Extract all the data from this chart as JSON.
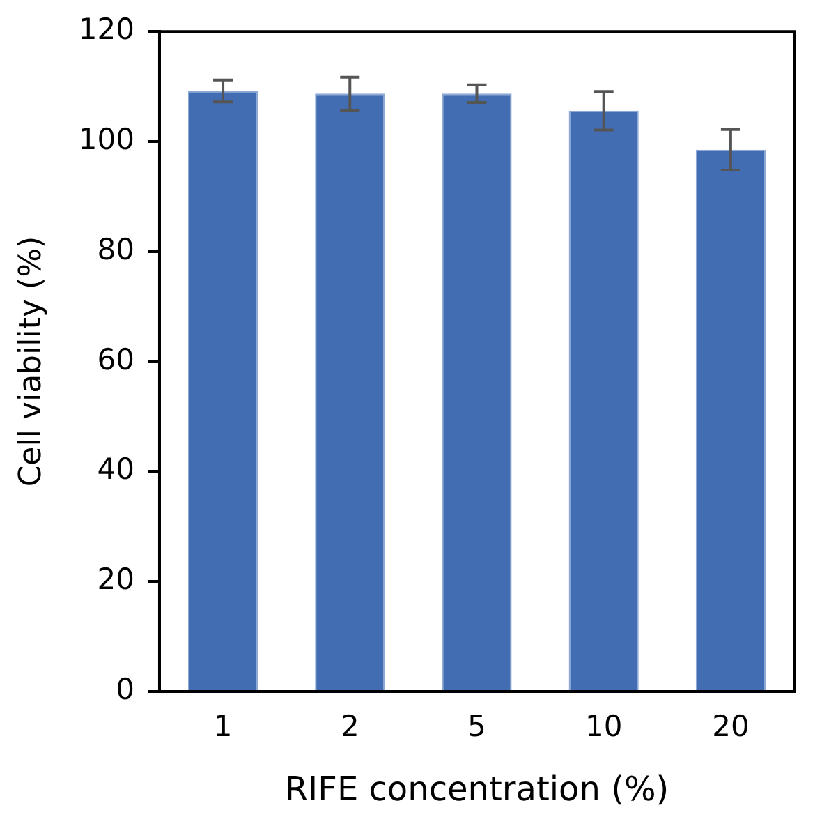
{
  "chart_data": {
    "type": "bar",
    "xlabel": "RIFE concentration (%)",
    "ylabel": "Cell viability (%)",
    "categories": [
      "1",
      "2",
      "5",
      "10",
      "20"
    ],
    "values": [
      109.2,
      108.7,
      108.7,
      105.6,
      98.5
    ],
    "errors": [
      2,
      3,
      1.6,
      3.5,
      3.7
    ],
    "color": "#426db3",
    "ylim": [
      0,
      120
    ],
    "yticks": [
      0,
      20,
      40,
      60,
      80,
      100,
      120
    ],
    "grid": false,
    "legend": false
  }
}
